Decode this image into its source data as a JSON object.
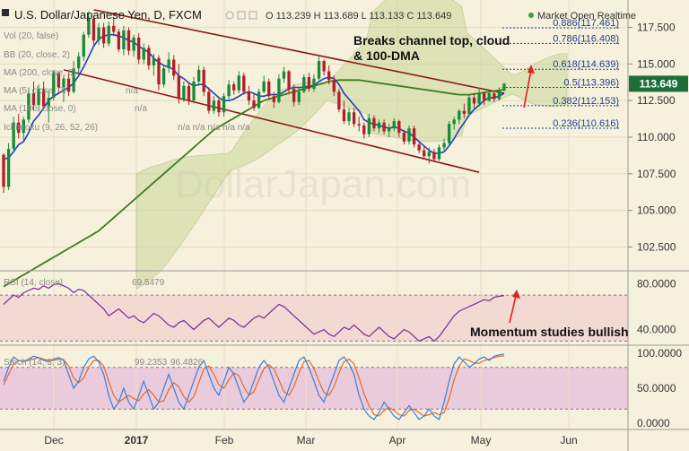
{
  "header": {
    "title": "U.S. Dollar/Japanese Yen, D, FXCM",
    "ohlc": "O 113.239  H 113.689  L 113.133  C 113.649",
    "market_status": "Market Open  Realtime"
  },
  "indicators": {
    "vol": "Vol (20, false)",
    "bb": "BB (20, close, 2)",
    "ma200": "MA (200, close, 0)",
    "ma5": "MA (5, close, 0)",
    "ma5_val": "n/a",
    "ma100": "MA (100, close, 0)",
    "ma100_val": "n/a",
    "ichimoku": "Ichimoku (9, 26, 52, 26)",
    "ichimoku_vals": "n/a  n/a  n/a  n/a  n/a",
    "rsi": "RSI (14, close)",
    "rsi_value": "69.5479",
    "stoch": "Stoch (14, 3, 3)",
    "stoch_k": "99.2353",
    "stoch_d": "96.4826"
  },
  "annotations": {
    "breaks_line1": "Breaks channel top, cloud",
    "breaks_line2": "& 100-DMA",
    "momentum": "Momentum studies bullish"
  },
  "price_badge": "113.649",
  "watermark": "DollarJapan.com",
  "colors": {
    "background": "#f6f1dc",
    "bull_candle": "#1a8a3a",
    "bear_candle": "#b0202a",
    "ma5": "#1f3fc0",
    "ma100": "#3f7a1e",
    "channel": "#8a1a1a",
    "fib": "#1d3f8f",
    "rsi_line": "#7a2a9a",
    "stoch_k": "#3a7fd8",
    "stoch_d": "#e06a2a",
    "badge": "#1e6e3a"
  },
  "chart_data": [
    {
      "type": "candlestick",
      "title": "U.S. Dollar/Japanese Yen, D, FXCM",
      "x_ticks": [
        "Dec",
        "2017",
        "Feb",
        "Mar",
        "Apr",
        "May",
        "Jun"
      ],
      "y_ticks": [
        102.5,
        105.0,
        107.5,
        110.0,
        112.5,
        115.0,
        117.5
      ],
      "ylim": [
        101.0,
        119.0
      ],
      "candles": [
        [
          108.8,
          108.9,
          106.2,
          106.6
        ],
        [
          106.6,
          109.6,
          106.4,
          109.2
        ],
        [
          109.2,
          111.4,
          109.0,
          111.0
        ],
        [
          111.0,
          111.6,
          109.9,
          110.3
        ],
        [
          110.3,
          111.4,
          109.8,
          111.2
        ],
        [
          111.2,
          113.4,
          111.0,
          113.0
        ],
        [
          113.0,
          113.8,
          111.8,
          112.2
        ],
        [
          112.2,
          113.6,
          111.8,
          113.3
        ],
        [
          113.3,
          113.8,
          111.9,
          112.1
        ],
        [
          112.1,
          113.1,
          111.0,
          112.7
        ],
        [
          112.7,
          114.6,
          112.5,
          114.4
        ],
        [
          114.4,
          114.5,
          113.0,
          113.4
        ],
        [
          113.4,
          114.2,
          112.4,
          114.0
        ],
        [
          114.0,
          114.6,
          112.8,
          113.1
        ],
        [
          113.1,
          115.2,
          113.0,
          114.7
        ],
        [
          114.7,
          115.8,
          114.3,
          115.5
        ],
        [
          115.5,
          117.2,
          115.2,
          117.0
        ],
        [
          117.0,
          118.6,
          116.8,
          118.1
        ],
        [
          118.1,
          118.3,
          116.2,
          116.6
        ],
        [
          116.6,
          117.8,
          116.3,
          117.5
        ],
        [
          117.5,
          117.8,
          116.1,
          116.4
        ],
        [
          116.4,
          117.9,
          116.2,
          117.6
        ],
        [
          117.6,
          118.2,
          116.9,
          117.2
        ],
        [
          117.2,
          117.4,
          115.8,
          116.0
        ],
        [
          116.0,
          117.6,
          115.6,
          117.3
        ],
        [
          117.3,
          117.5,
          115.6,
          115.9
        ],
        [
          115.9,
          117.0,
          115.5,
          116.8
        ],
        [
          116.8,
          117.1,
          115.0,
          115.3
        ],
        [
          115.3,
          116.4,
          115.0,
          116.1
        ],
        [
          116.1,
          116.3,
          114.6,
          114.9
        ],
        [
          114.9,
          115.7,
          114.2,
          115.4
        ],
        [
          115.4,
          115.6,
          113.2,
          113.6
        ],
        [
          113.6,
          114.9,
          113.4,
          114.7
        ],
        [
          114.7,
          115.8,
          114.4,
          115.3
        ],
        [
          115.3,
          115.6,
          113.9,
          114.2
        ],
        [
          114.2,
          115.0,
          112.3,
          112.6
        ],
        [
          112.6,
          113.8,
          112.4,
          113.5
        ],
        [
          113.5,
          113.7,
          112.2,
          112.5
        ],
        [
          112.5,
          114.1,
          112.3,
          113.8
        ],
        [
          113.8,
          114.9,
          113.5,
          114.6
        ],
        [
          114.6,
          114.8,
          112.8,
          113.1
        ],
        [
          113.1,
          113.4,
          111.6,
          111.8
        ],
        [
          111.8,
          112.8,
          111.6,
          112.5
        ],
        [
          112.5,
          112.7,
          111.4,
          111.7
        ],
        [
          111.7,
          113.0,
          111.4,
          112.8
        ],
        [
          112.8,
          113.9,
          112.6,
          113.6
        ],
        [
          113.6,
          113.8,
          112.9,
          113.2
        ],
        [
          113.2,
          114.5,
          113.0,
          114.2
        ],
        [
          114.2,
          114.4,
          112.9,
          113.1
        ],
        [
          113.1,
          113.5,
          112.2,
          112.5
        ],
        [
          112.5,
          113.0,
          111.8,
          112.0
        ],
        [
          112.0,
          113.3,
          111.9,
          113.1
        ],
        [
          113.1,
          114.2,
          113.0,
          113.8
        ],
        [
          113.8,
          114.0,
          112.6,
          112.8
        ],
        [
          112.8,
          113.1,
          112.0,
          112.4
        ],
        [
          112.4,
          114.3,
          112.3,
          114.0
        ],
        [
          114.0,
          114.8,
          113.7,
          114.5
        ],
        [
          114.5,
          114.6,
          113.0,
          113.3
        ],
        [
          113.3,
          113.6,
          112.1,
          112.4
        ],
        [
          112.4,
          113.4,
          112.2,
          113.1
        ],
        [
          113.1,
          114.3,
          113.0,
          114.1
        ],
        [
          114.1,
          114.4,
          113.1,
          113.3
        ],
        [
          113.3,
          114.3,
          113.1,
          114.0
        ],
        [
          114.0,
          115.5,
          113.9,
          115.2
        ],
        [
          115.2,
          115.3,
          114.2,
          114.5
        ],
        [
          114.5,
          114.9,
          113.6,
          113.9
        ],
        [
          113.9,
          114.2,
          112.8,
          113.1
        ],
        [
          113.1,
          113.3,
          111.7,
          111.9
        ],
        [
          111.9,
          112.5,
          110.9,
          111.1
        ],
        [
          111.1,
          112.0,
          110.8,
          111.7
        ],
        [
          111.7,
          112.0,
          110.7,
          110.9
        ],
        [
          110.9,
          111.4,
          110.4,
          110.8
        ],
        [
          110.8,
          111.0,
          109.9,
          110.2
        ],
        [
          110.2,
          111.6,
          110.0,
          111.3
        ],
        [
          111.3,
          111.5,
          110.4,
          110.6
        ],
        [
          110.6,
          111.2,
          110.3,
          111.0
        ],
        [
          111.0,
          111.2,
          110.2,
          110.4
        ],
        [
          110.4,
          110.9,
          110.0,
          110.6
        ],
        [
          110.6,
          111.3,
          110.4,
          111.1
        ],
        [
          111.1,
          111.2,
          110.0,
          110.3
        ],
        [
          110.3,
          110.5,
          109.5,
          109.7
        ],
        [
          109.7,
          110.8,
          109.5,
          110.6
        ],
        [
          110.6,
          110.8,
          109.3,
          109.5
        ],
        [
          109.5,
          109.7,
          108.9,
          109.1
        ],
        [
          109.1,
          109.4,
          108.5,
          108.7
        ],
        [
          108.7,
          109.3,
          108.2,
          109.0
        ],
        [
          109.0,
          109.2,
          108.3,
          108.5
        ],
        [
          108.5,
          109.5,
          108.4,
          109.3
        ],
        [
          109.3,
          109.9,
          109.1,
          109.6
        ],
        [
          109.6,
          111.1,
          109.4,
          110.9
        ],
        [
          110.9,
          111.4,
          110.5,
          111.2
        ],
        [
          111.2,
          111.9,
          110.9,
          111.8
        ],
        [
          111.8,
          112.3,
          111.3,
          111.6
        ],
        [
          111.6,
          112.9,
          111.5,
          112.7
        ],
        [
          112.7,
          113.0,
          112.0,
          112.3
        ],
        [
          112.3,
          113.4,
          112.1,
          113.0
        ],
        [
          113.0,
          113.1,
          112.2,
          112.5
        ],
        [
          112.5,
          113.2,
          112.4,
          113.0
        ],
        [
          113.0,
          113.1,
          112.4,
          112.6
        ],
        [
          112.6,
          113.4,
          112.5,
          113.2
        ],
        [
          113.2,
          113.7,
          113.1,
          113.65
        ]
      ],
      "ma5": [
        108.5,
        108.6,
        109.0,
        109.5,
        109.7,
        110.3,
        111.1,
        111.5,
        112.0,
        112.5,
        112.8,
        113.0,
        113.2,
        113.4,
        113.7,
        114.2,
        114.8,
        115.5,
        116.2,
        116.7,
        116.9,
        117.0,
        117.0,
        116.9,
        116.8,
        116.6,
        116.5,
        116.2,
        116.0,
        115.8,
        115.4,
        115.1,
        114.9,
        114.8,
        114.6,
        114.2,
        114.0,
        113.7,
        113.5,
        113.6,
        113.6,
        113.3,
        113.0,
        112.7,
        112.5,
        112.5,
        112.6,
        112.8,
        113.0,
        113.1,
        113.0,
        112.8,
        112.8,
        112.9,
        112.9,
        112.9,
        113.1,
        113.3,
        113.4,
        113.4,
        113.4,
        113.5,
        113.5,
        113.8,
        114.0,
        114.1,
        114.0,
        113.6,
        113.0,
        112.6,
        112.2,
        111.8,
        111.2,
        111.0,
        110.9,
        110.8,
        110.7,
        110.6,
        110.7,
        110.6,
        110.4,
        110.3,
        110.0,
        109.7,
        109.4,
        109.1,
        108.9,
        108.9,
        109.0,
        109.4,
        109.9,
        110.5,
        111.0,
        111.5,
        111.9,
        112.2,
        112.5,
        112.7,
        112.7,
        112.8,
        113.0
      ],
      "ma100": [
        99.8,
        100.0,
        100.2,
        100.4,
        100.6,
        100.8,
        101.0,
        101.2,
        101.4,
        101.6,
        101.8,
        102.0,
        102.2,
        102.4,
        102.6,
        102.8,
        103.0,
        103.2,
        103.4,
        103.6,
        103.9,
        104.2,
        104.5,
        104.8,
        105.1,
        105.4,
        105.7,
        106.0,
        106.3,
        106.6,
        106.9,
        107.2,
        107.5,
        107.8,
        108.1,
        108.4,
        108.7,
        109.0,
        109.3,
        109.6,
        109.9,
        110.2,
        110.5,
        110.7,
        110.9,
        111.1,
        111.3,
        111.5,
        111.7,
        111.9,
        112.1,
        112.3,
        112.5,
        112.6,
        112.7,
        112.8,
        112.9,
        113.0,
        113.1,
        113.2,
        113.3,
        113.4,
        113.5,
        113.6,
        113.7,
        113.8,
        113.85,
        113.9,
        113.9,
        113.9,
        113.9,
        113.9,
        113.85,
        113.8,
        113.75,
        113.7,
        113.65,
        113.6,
        113.55,
        113.5,
        113.45,
        113.4,
        113.35,
        113.3,
        113.25,
        113.2,
        113.15,
        113.1,
        113.05,
        113.0,
        112.95,
        112.9,
        112.9,
        112.9,
        112.95,
        113.0,
        113.05,
        113.1,
        113.15,
        113.2,
        113.25
      ],
      "channel_top": [
        {
          "bar": 18,
          "price": 118.7
        },
        {
          "bar": 100,
          "price": 113.0
        }
      ],
      "channel_bottom": [
        {
          "bar": 12,
          "price": 114.6
        },
        {
          "bar": 95,
          "price": 107.6
        }
      ],
      "fib_levels": [
        {
          "label": "0.886(117.461)",
          "price": 117.461
        },
        {
          "label": "0.786(116.408)",
          "price": 116.408
        },
        {
          "label": "0.618(114.639)",
          "price": 114.639
        },
        {
          "label": "0.5(113.396)",
          "price": 113.396
        },
        {
          "label": "0.382(112.153)",
          "price": 112.153
        },
        {
          "label": "0.236(110.616)",
          "price": 110.616
        }
      ],
      "last_price": 113.649
    },
    {
      "type": "line",
      "title": "RSI (14, close)",
      "y_ticks": [
        40.0,
        80.0
      ],
      "ylim": [
        28,
        88
      ],
      "band": [
        30,
        70
      ],
      "last_value": 69.5479,
      "values": [
        62,
        66,
        70,
        68,
        72,
        74,
        76,
        75,
        78,
        76,
        79,
        80,
        78,
        76,
        72,
        75,
        74,
        70,
        66,
        62,
        58,
        52,
        55,
        58,
        54,
        50,
        52,
        48,
        46,
        50,
        54,
        52,
        48,
        44,
        42,
        46,
        48,
        44,
        40,
        44,
        48,
        50,
        46,
        42,
        46,
        50,
        48,
        44,
        42,
        46,
        50,
        52,
        50,
        54,
        58,
        62,
        60,
        56,
        52,
        48,
        44,
        40,
        36,
        38,
        40,
        36,
        34,
        38,
        42,
        40,
        44,
        40,
        36,
        34,
        38,
        42,
        38,
        34,
        32,
        36,
        40,
        38,
        34,
        30,
        32,
        34,
        30,
        34,
        40,
        46,
        52,
        56,
        58,
        60,
        62,
        64,
        66,
        65,
        68,
        69,
        69.5
      ]
    },
    {
      "type": "line",
      "title": "Stoch (14, 3, 3)",
      "y_ticks": [
        0.0,
        50.0,
        100.0
      ],
      "ylim": [
        -8,
        108
      ],
      "band": [
        20,
        80
      ],
      "series": [
        {
          "name": "%K",
          "last_value": 99.2353,
          "values": [
            60,
            80,
            95,
            90,
            88,
            92,
            96,
            94,
            90,
            88,
            92,
            94,
            90,
            70,
            50,
            60,
            80,
            92,
            96,
            88,
            70,
            40,
            20,
            30,
            50,
            30,
            20,
            40,
            60,
            40,
            20,
            30,
            50,
            70,
            50,
            30,
            20,
            40,
            60,
            80,
            90,
            70,
            50,
            40,
            60,
            80,
            70,
            50,
            30,
            40,
            60,
            80,
            90,
            80,
            60,
            40,
            30,
            50,
            70,
            90,
            95,
            80,
            60,
            40,
            30,
            50,
            70,
            90,
            95,
            85,
            70,
            40,
            20,
            10,
            5,
            15,
            30,
            20,
            10,
            5,
            15,
            25,
            15,
            5,
            10,
            20,
            10,
            5,
            30,
            60,
            85,
            95,
            88,
            80,
            85,
            92,
            95,
            90,
            96,
            98,
            99.2
          ]
        },
        {
          "name": "%D",
          "last_value": 96.4826,
          "values": [
            55,
            70,
            85,
            90,
            89,
            90,
            92,
            94,
            92,
            90,
            90,
            92,
            91,
            82,
            65,
            58,
            65,
            80,
            90,
            90,
            82,
            60,
            40,
            30,
            35,
            40,
            35,
            32,
            42,
            48,
            40,
            30,
            32,
            48,
            58,
            52,
            38,
            30,
            38,
            58,
            78,
            82,
            70,
            55,
            50,
            62,
            72,
            68,
            52,
            40,
            45,
            62,
            78,
            84,
            78,
            62,
            45,
            40,
            52,
            72,
            88,
            90,
            78,
            60,
            44,
            40,
            52,
            72,
            88,
            92,
            85,
            65,
            42,
            25,
            12,
            10,
            18,
            22,
            18,
            12,
            10,
            18,
            20,
            15,
            10,
            12,
            15,
            12,
            15,
            35,
            62,
            82,
            92,
            90,
            86,
            86,
            90,
            92,
            94,
            96,
            96.5
          ]
        }
      ]
    }
  ]
}
